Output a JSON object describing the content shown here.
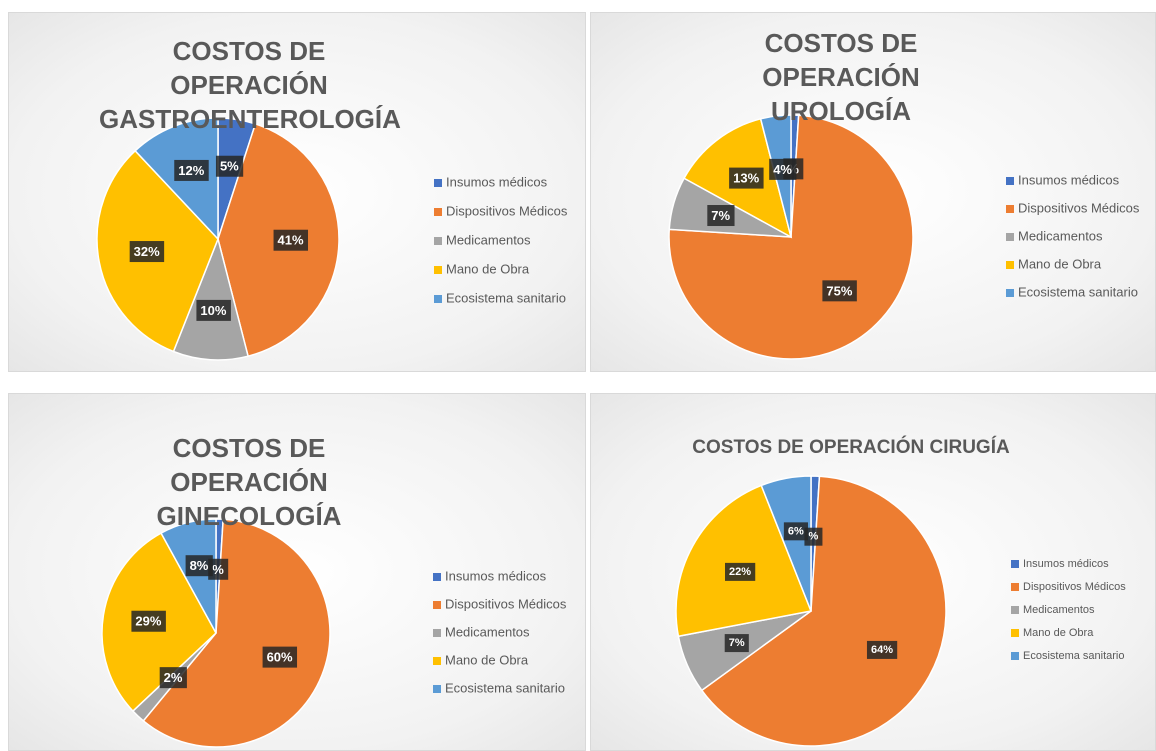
{
  "chart_data": [
    {
      "type": "pie",
      "title": "COSTOS DE OPERACIÓN GASTROENTEROLOGÍA",
      "categories": [
        "Insumos médicos",
        "Dispositivos Médicos",
        "Medicamentos",
        "Mano de Obra",
        "Ecosistema sanitario"
      ],
      "values": [
        5,
        41,
        10,
        32,
        12
      ],
      "value_labels": [
        "5%",
        "41%",
        "10%",
        "32%",
        "12%"
      ],
      "colors": [
        "#4472c4",
        "#ed7d31",
        "#a5a5a5",
        "#ffc000",
        "#5b9bd5"
      ],
      "legend": "right"
    },
    {
      "type": "pie",
      "title": "COSTOS DE OPERACIÓN UROLOGÍA",
      "categories": [
        "Insumos médicos",
        "Dispositivos Médicos",
        "Medicamentos",
        "Mano de Obra",
        "Ecosistema sanitario"
      ],
      "values": [
        1,
        75,
        7,
        13,
        4
      ],
      "value_labels": [
        "%",
        "75%",
        "7%",
        "13%",
        "4%"
      ],
      "colors": [
        "#4472c4",
        "#ed7d31",
        "#a5a5a5",
        "#ffc000",
        "#5b9bd5"
      ],
      "legend": "right"
    },
    {
      "type": "pie",
      "title": "COSTOS DE OPERACIÓN GINECOLOGÍA",
      "categories": [
        "Insumos médicos",
        "Dispositivos Médicos",
        "Medicamentos",
        "Mano de Obra",
        "Ecosistema sanitario"
      ],
      "values": [
        1,
        60,
        2,
        29,
        8
      ],
      "value_labels": [
        "%",
        "60%",
        "2%",
        "29%",
        "8%"
      ],
      "colors": [
        "#4472c4",
        "#ed7d31",
        "#a5a5a5",
        "#ffc000",
        "#5b9bd5"
      ],
      "legend": "right"
    },
    {
      "type": "pie",
      "title": "COSTOS DE OPERACIÓN CIRUGÍA",
      "categories": [
        "Insumos médicos",
        "Dispositivos Médicos",
        "Medicamentos",
        "Mano de Obra",
        "Ecosistema sanitario"
      ],
      "values": [
        1,
        64,
        7,
        22,
        6
      ],
      "value_labels": [
        "%",
        "64%",
        "7%",
        "22%",
        "6%"
      ],
      "colors": [
        "#4472c4",
        "#ed7d31",
        "#a5a5a5",
        "#ffc000",
        "#5b9bd5"
      ],
      "legend": "right"
    }
  ]
}
